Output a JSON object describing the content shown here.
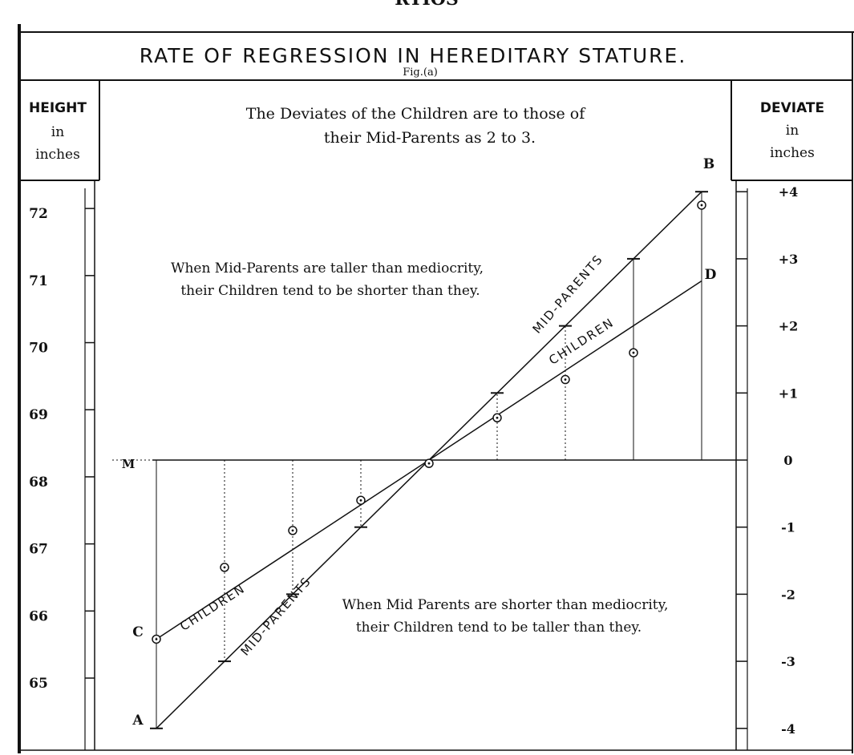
{
  "page_top_text": "RTIOS",
  "title": "RATE OF REGRESSION IN HEREDITARY STATURE.",
  "fig_label": "Fig.(a)",
  "left_axis_header": [
    "HEIGHT",
    "in",
    "inches"
  ],
  "right_axis_header": [
    "DEVIATE",
    "in",
    "inches"
  ],
  "subtitle": [
    "The Deviates of the Children are to those of",
    "their Mid-Parents as 2 to 3."
  ],
  "annotation_upper": [
    "When Mid-Parents are taller than mediocrity,",
    "their Children tend to be shorter than they."
  ],
  "annotation_lower": [
    "When Mid Parents are shorter than mediocrity,",
    "their Children tend to be taller than they."
  ],
  "line_labels": {
    "mid_parents": "MID-PARENTS",
    "children": "CHILDREN"
  },
  "point_labels": {
    "A": "A",
    "B": "B",
    "C": "C",
    "D": "D",
    "M": "M"
  },
  "chart_data": {
    "type": "line",
    "title": "RATE OF REGRESSION IN HEREDITARY STATURE.",
    "left_axis": {
      "label": "HEIGHT in inches",
      "ticks": [
        72,
        71,
        70,
        69,
        68,
        67,
        66,
        65
      ],
      "range": [
        64.3,
        72.4
      ]
    },
    "right_axis": {
      "label": "DEVIATE in inches",
      "ticks": [
        4,
        3,
        2,
        1,
        0,
        -1,
        -2,
        -3,
        -4
      ],
      "tick_labels": [
        "+4",
        "+3",
        "+2",
        "+1",
        "0",
        "-1",
        "-2",
        "-3",
        "-4"
      ],
      "range": [
        -4,
        4
      ]
    },
    "mediocrity_height": 68.25,
    "grid": false,
    "x": [
      1,
      2,
      3,
      4,
      5,
      6,
      7,
      8,
      9,
      10
    ],
    "series": [
      {
        "name": "MID-PARENTS",
        "deviates": [
          -4,
          -3,
          -2,
          -1,
          0,
          1,
          2,
          3,
          4
        ],
        "x_positions": [
          1,
          2,
          3,
          4,
          5,
          6,
          7,
          8,
          9
        ]
      },
      {
        "name": "CHILDREN",
        "deviates": [
          -2.67,
          -2,
          -1.33,
          -0.67,
          0,
          0.67,
          1.33,
          2,
          2.67
        ],
        "x_positions": [
          1,
          2,
          3,
          4,
          5,
          6,
          7,
          8,
          9
        ]
      }
    ],
    "observed_children_deviates": [
      {
        "x": 2,
        "dev": -1.6
      },
      {
        "x": 3,
        "dev": -1.05
      },
      {
        "x": 4,
        "dev": -0.6
      },
      {
        "x": 5,
        "dev": -0.05
      },
      {
        "x": 6,
        "dev": 0.63
      },
      {
        "x": 7,
        "dev": 1.2
      },
      {
        "x": 8,
        "dev": 1.6
      },
      {
        "x": 9,
        "dev": 3.8
      }
    ]
  }
}
